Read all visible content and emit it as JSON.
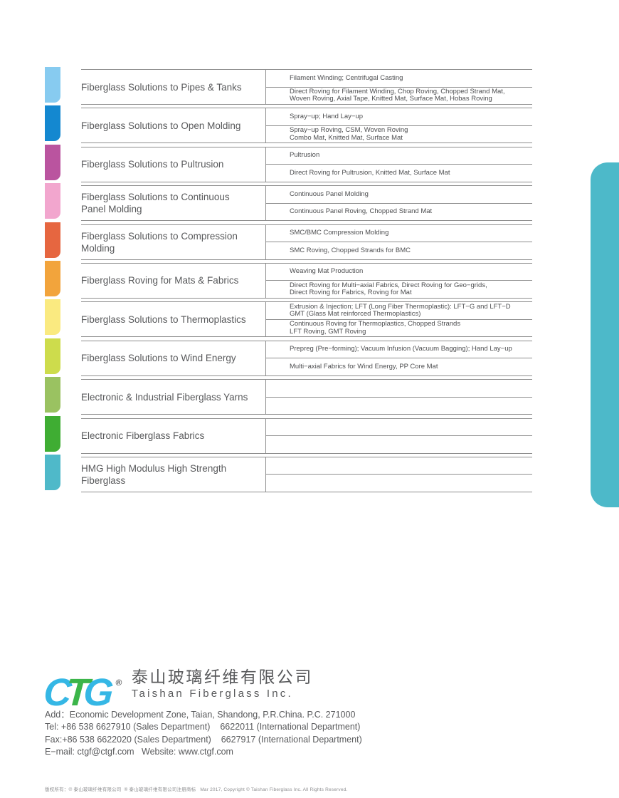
{
  "solutions_table": {
    "rows": [
      {
        "category": "Fiberglass Solutions to Pipes & Tanks",
        "tab_color": "#87cbf0",
        "process": "Filament Winding; Centrifugal Casting",
        "products": "Direct Roving for Filament Winding, Chop Roving, Chopped Strand Mat,\nWoven Roving, Axial Tape, Knitted Mat, Surface Mat, Hobas Roving"
      },
      {
        "category": "Fiberglass Solutions to Open Molding",
        "tab_color": "#1488d0",
        "process": "Spray−up; Hand Lay−up",
        "products": "Spray−up Roving, CSM, Woven Roving\nCombo Mat, Knitted Mat, Surface Mat"
      },
      {
        "category": "Fiberglass Solutions to Pultrusion",
        "tab_color": "#ba549f",
        "process": "Pultrusion",
        "products": "Direct Roving for Pultrusion, Knitted Mat, Surface Mat"
      },
      {
        "category": "Fiberglass Solutions to Continuous\nPanel Molding",
        "tab_color": "#f2a6ce",
        "process": "Continuous Panel Molding",
        "products": "Continuous Panel Roving, Chopped Strand Mat"
      },
      {
        "category": "Fiberglass Solutions to Compression\nMolding",
        "tab_color": "#e66640",
        "process": "SMC/BMC Compression Molding",
        "products": "SMC Roving, Chopped Strands for BMC"
      },
      {
        "category": "Fiberglass Roving for Mats & Fabrics",
        "tab_color": "#f2a43c",
        "process": "Weaving  Mat Production",
        "products": "Direct Roving for Multi−axial Fabrics, Direct Roving for Geo−grids,\nDirect Roving for Fabrics, Roving for Mat"
      },
      {
        "category": "Fiberglass Solutions to Thermoplastics",
        "tab_color": "#faea80",
        "process": "Extrusion & Injection; LFT (Long Fiber Thermoplastic): LFT−G and LFT−D\nGMT (Glass Mat reinforced Thermoplastics)",
        "products": "Continuous Roving for Thermoplastics, Chopped Strands\nLFT Roving, GMT Roving"
      },
      {
        "category": "Fiberglass Solutions to Wind Energy",
        "tab_color": "#cddc4c",
        "process": "Prepreg (Pre−forming); Vacuum Infusion (Vacuum Bagging); Hand Lay−up",
        "products": "Multi−axial Fabrics for Wind Energy, PP Core Mat"
      },
      {
        "category": "Electronic & Industrial Fiberglass Yarns",
        "tab_color": "#9ac261",
        "process": "",
        "products": ""
      },
      {
        "category": "Electronic Fiberglass Fabrics",
        "tab_color": "#3fad33",
        "process": "",
        "products": ""
      },
      {
        "category": "HMG High Modulus High Strength\nFiberglass",
        "tab_color": "#4fb9c9",
        "process": "",
        "products": ""
      }
    ]
  },
  "side_tab_color": "#4db9c9",
  "footer": {
    "logo": {
      "letter_c": "C",
      "letter_t": "T",
      "letter_g": "G",
      "registered_mark": "®",
      "color_c": "#35b7e5",
      "color_t": "#3bb54a",
      "color_g": "#35b7e5",
      "company_cn": "泰山玻璃纤维有限公司",
      "company_en": "Taishan Fiberglass Inc."
    },
    "address": "Add：Economic Development Zone, Taian, Shandong, P.R.China. P.C. 271000",
    "tel": "Tel: +86 538 6627910 (Sales Department)    6622011 (International Department)",
    "fax": "Fax:+86 538 6622020 (Sales Department)    6627917 (International Department)",
    "email_web": "E−mail: ctgf@ctgf.com   Website: www.ctgf.com",
    "fine_print": "版权所有：© 泰山玻璃纤维有限公司  ® 泰山玻璃纤维有限公司注册商标   Mar 2017, Copyright © Taishan Fiberglass Inc. All Rights Reserved."
  }
}
